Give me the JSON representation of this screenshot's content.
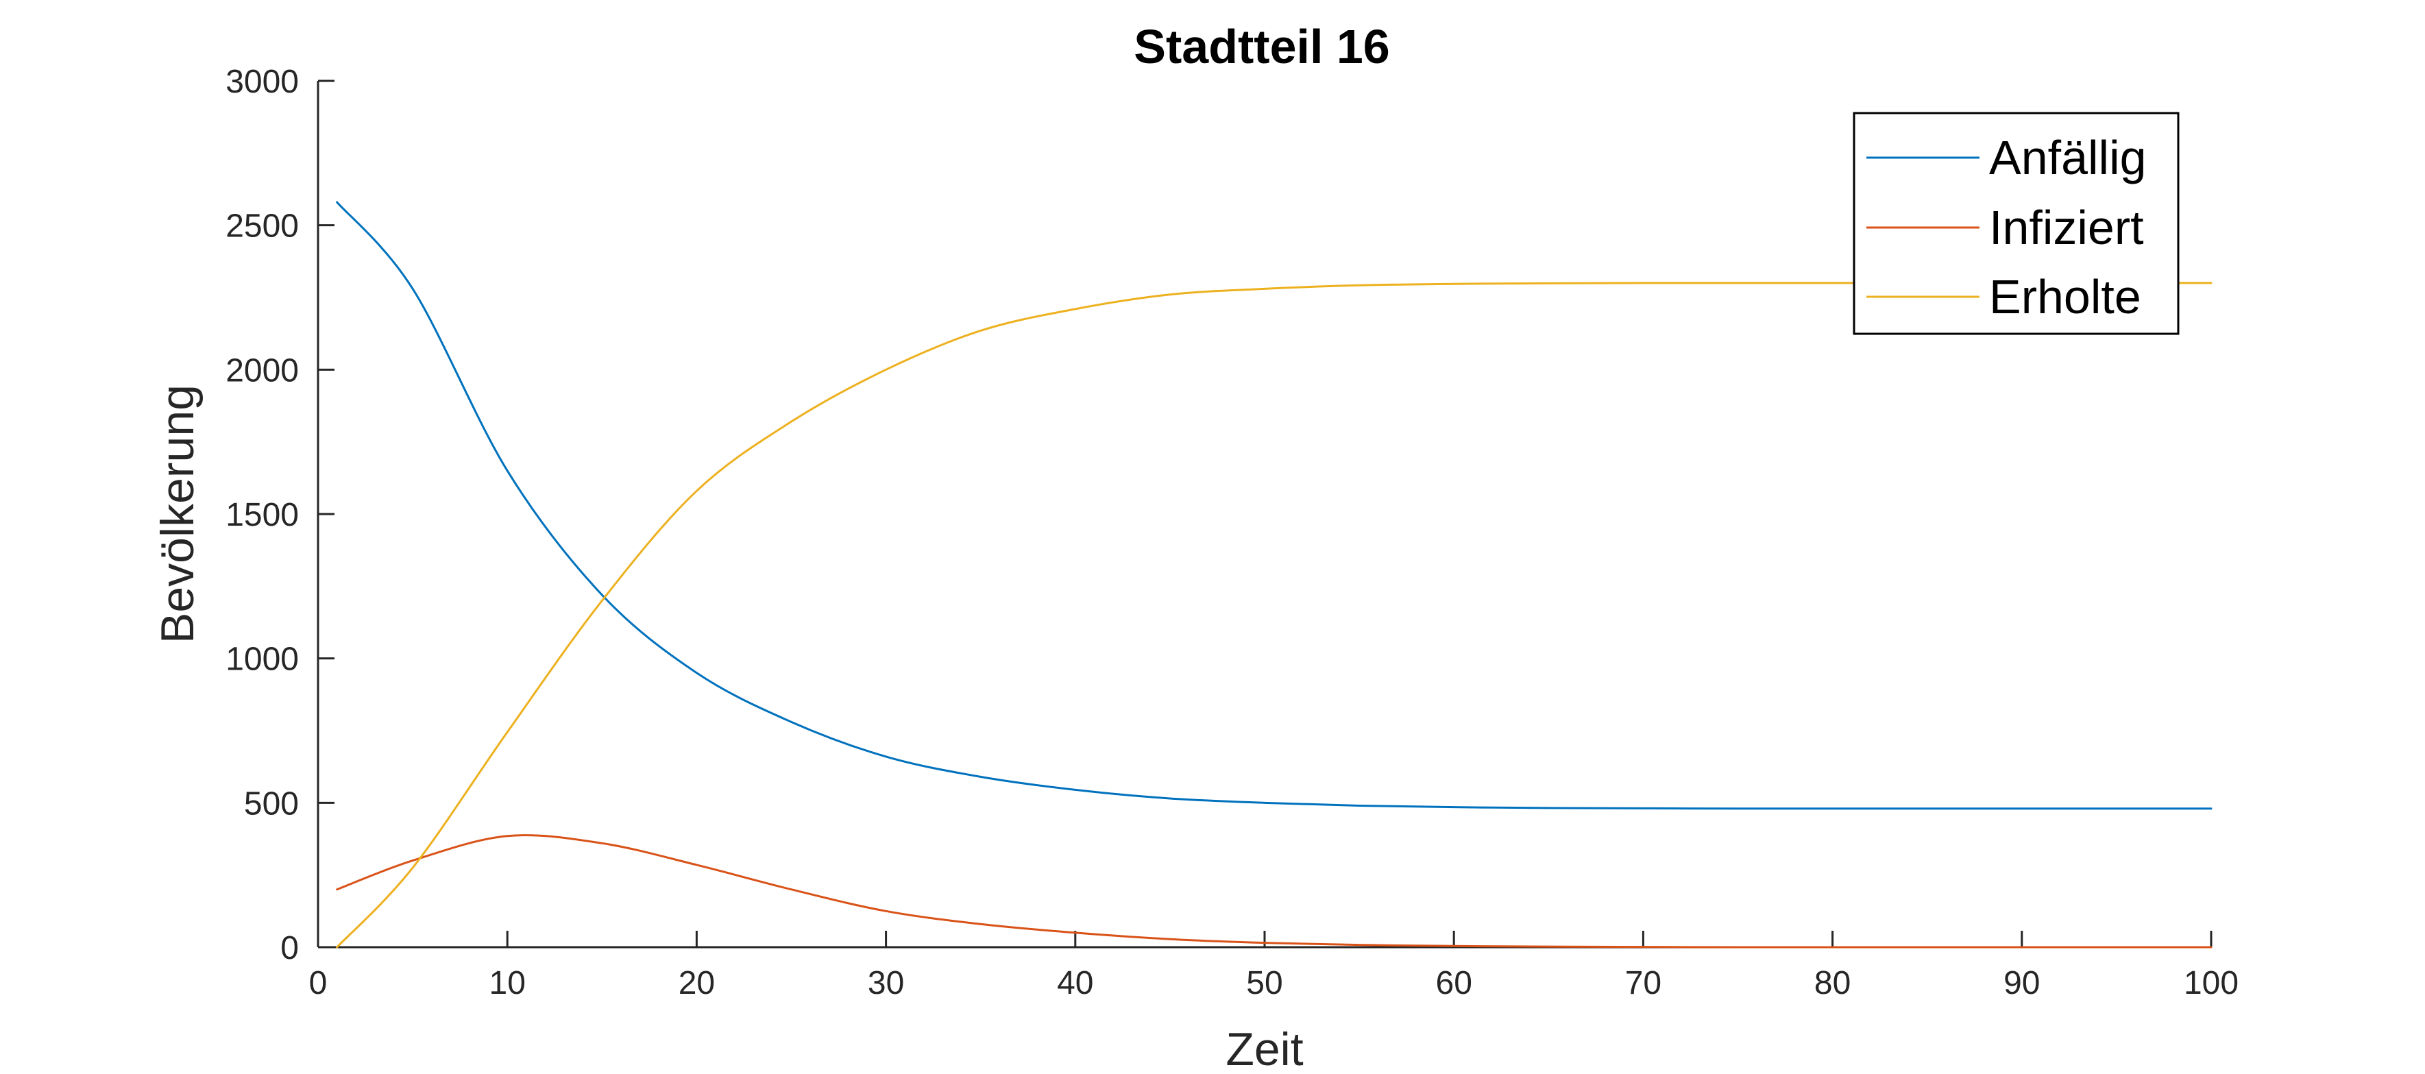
{
  "chart_data": {
    "type": "line",
    "title": "Stadtteil 16",
    "xlabel": "Zeit",
    "ylabel": "Bevölkerung",
    "xlim": [
      0,
      100
    ],
    "ylim": [
      0,
      3000
    ],
    "xticks": [
      0,
      10,
      20,
      30,
      40,
      50,
      60,
      70,
      80,
      90,
      100
    ],
    "yticks": [
      0,
      500,
      1000,
      1500,
      2000,
      2500,
      3000
    ],
    "xtick_labels": [
      "0",
      "10",
      "20",
      "30",
      "40",
      "50",
      "60",
      "70",
      "80",
      "90",
      "100"
    ],
    "ytick_labels": [
      "0",
      "500",
      "1000",
      "1500",
      "2000",
      "2500",
      "3000"
    ],
    "grid": false,
    "legend_position": "top-right",
    "x": [
      1,
      5,
      10,
      15,
      20,
      25,
      30,
      35,
      40,
      45,
      50,
      55,
      60,
      65,
      70,
      75,
      80,
      85,
      90,
      95,
      100
    ],
    "series": [
      {
        "name": "Anfällig",
        "color": "#0072BD",
        "values": [
          2580,
          2280,
          1650,
          1220,
          950,
          780,
          660,
          590,
          545,
          515,
          500,
          490,
          485,
          482,
          481,
          480,
          480,
          480,
          480,
          480,
          480
        ]
      },
      {
        "name": "Infiziert",
        "color": "#D95319",
        "values": [
          200,
          300,
          385,
          360,
          285,
          200,
          125,
          80,
          50,
          28,
          15,
          8,
          4,
          2,
          1,
          0,
          0,
          0,
          0,
          0,
          0
        ]
      },
      {
        "name": "Erholte",
        "color": "#EDB120",
        "values": [
          0,
          275,
          745,
          1200,
          1580,
          1820,
          2000,
          2135,
          2210,
          2260,
          2280,
          2292,
          2297,
          2299,
          2300,
          2300,
          2300,
          2300,
          2300,
          2300,
          2300
        ]
      }
    ]
  }
}
